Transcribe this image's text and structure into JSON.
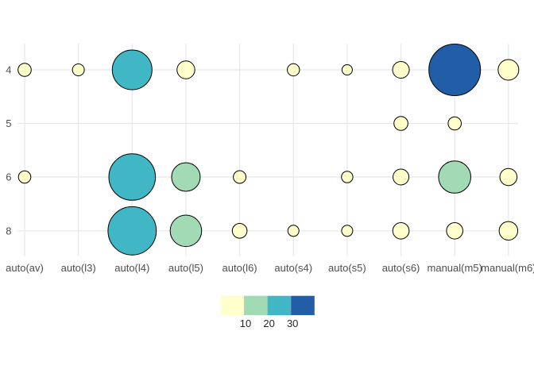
{
  "chart_data": {
    "type": "bubble",
    "title": "",
    "xlabel": "",
    "ylabel": "",
    "grid": true,
    "legend_position": "bottom-center",
    "x_categories": [
      "auto(av)",
      "auto(l3)",
      "auto(l4)",
      "auto(l5)",
      "auto(l6)",
      "auto(s4)",
      "auto(s5)",
      "auto(s6)",
      "manual(m5)",
      "manual(m6)"
    ],
    "y_categories": [
      "4",
      "5",
      "6",
      "8"
    ],
    "size_meaning": "count n (estimated from bubble area)",
    "points": [
      {
        "x": "auto(av)",
        "y": "4",
        "n": 2,
        "r": 8.3
      },
      {
        "x": "auto(l3)",
        "y": "4",
        "n": 2,
        "r": 7.5
      },
      {
        "x": "auto(l4)",
        "y": "4",
        "n": 23,
        "r": 25.0
      },
      {
        "x": "auto(l5)",
        "y": "4",
        "n": 4,
        "r": 11.2
      },
      {
        "x": "auto(s4)",
        "y": "4",
        "n": 2,
        "r": 7.7
      },
      {
        "x": "auto(s5)",
        "y": "4",
        "n": 1,
        "r": 6.5
      },
      {
        "x": "auto(s6)",
        "y": "4",
        "n": 4,
        "r": 10.5
      },
      {
        "x": "manual(m5)",
        "y": "4",
        "n": 33,
        "r": 32.5
      },
      {
        "x": "manual(m6)",
        "y": "4",
        "n": 6,
        "r": 13.0
      },
      {
        "x": "auto(s6)",
        "y": "5",
        "n": 2,
        "r": 8.8
      },
      {
        "x": "manual(m5)",
        "y": "5",
        "n": 2,
        "r": 8.3
      },
      {
        "x": "auto(av)",
        "y": "6",
        "n": 2,
        "r": 7.8
      },
      {
        "x": "auto(l4)",
        "y": "6",
        "n": 30,
        "r": 29.3
      },
      {
        "x": "auto(l5)",
        "y": "6",
        "n": 11,
        "r": 18.0
      },
      {
        "x": "auto(l6)",
        "y": "6",
        "n": 2,
        "r": 8.0
      },
      {
        "x": "auto(s5)",
        "y": "6",
        "n": 2,
        "r": 7.2
      },
      {
        "x": "auto(s6)",
        "y": "6",
        "n": 4,
        "r": 10.0
      },
      {
        "x": "manual(m5)",
        "y": "6",
        "n": 13,
        "r": 20.3
      },
      {
        "x": "manual(m6)",
        "y": "6",
        "n": 4,
        "r": 10.8
      },
      {
        "x": "auto(l4)",
        "y": "8",
        "n": 30,
        "r": 30.4
      },
      {
        "x": "auto(l5)",
        "y": "8",
        "n": 13,
        "r": 19.8
      },
      {
        "x": "auto(l6)",
        "y": "8",
        "n": 3,
        "r": 9.3
      },
      {
        "x": "auto(s4)",
        "y": "8",
        "n": 1,
        "r": 7.0
      },
      {
        "x": "auto(s5)",
        "y": "8",
        "n": 2,
        "r": 7.0
      },
      {
        "x": "auto(s6)",
        "y": "8",
        "n": 4,
        "r": 10.3
      },
      {
        "x": "manual(m5)",
        "y": "8",
        "n": 4,
        "r": 10.3
      },
      {
        "x": "manual(m6)",
        "y": "8",
        "n": 5,
        "r": 11.7
      }
    ],
    "legend": {
      "tick_labels": [
        "10",
        "20",
        "30"
      ],
      "bins": [
        {
          "max": 10,
          "color": "#FFFFCC"
        },
        {
          "max": 20,
          "color": "#A1DAB4"
        },
        {
          "max": 30,
          "color": "#41B6C4"
        },
        {
          "max": 40,
          "color": "#225EA8"
        }
      ]
    },
    "colors": {
      "background": "#FFFFFF",
      "gridline": "#E7E7E7",
      "bubble_stroke": "#000000",
      "axis_text": "#4D4D4D",
      "legend_text": "#262626"
    }
  }
}
